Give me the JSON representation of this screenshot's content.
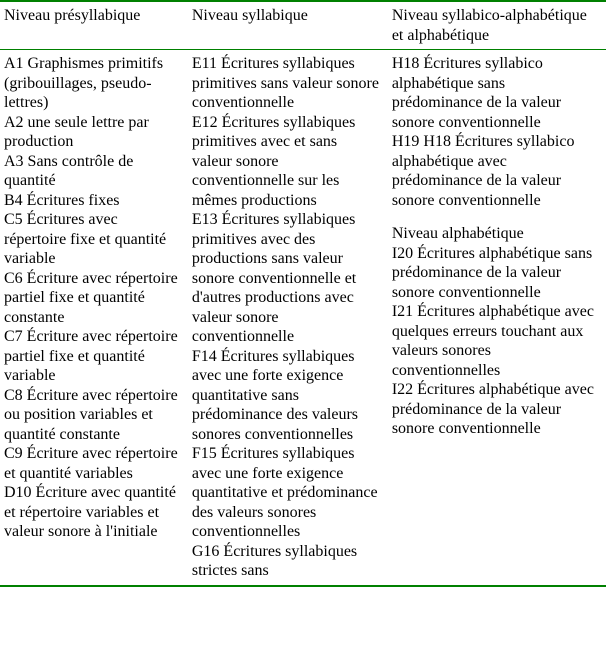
{
  "colors": {
    "border": "#008000",
    "text": "#000000",
    "background": "#ffffff"
  },
  "typography": {
    "family": "Times New Roman",
    "size_pt": 12
  },
  "table": {
    "headers": {
      "col1": "Niveau présyllabique",
      "col2": "Niveau syllabique",
      "col3a": "Niveau syllabico-alphabétique",
      "col3b": "et alphabétique"
    },
    "col1": {
      "a1": "A1 Graphismes primitifs (gribouillages, pseudo-lettres)",
      "a2": "A2 une seule lettre par production",
      "a3": "A3 Sans contrôle de quantité",
      "b4": "B4 Écritures fixes",
      "c5": "C5 Écritures avec répertoire fixe et quantité variable",
      "c6": "C6 Écriture avec répertoire partiel fixe et quantité constante",
      "c7": "C7 Écriture avec répertoire partiel fixe et quantité variable",
      "c8": "C8 Écriture avec répertoire ou position variables et quantité constante",
      "c9": "C9 Écriture avec répertoire et quantité variables",
      "d10": "D10 Écriture avec quantité et répertoire variables et valeur sonore à l'initiale"
    },
    "col2": {
      "e11": "E11 Écritures syllabiques primitives sans valeur sonore conventionnelle",
      "e12": "E12 Écritures syllabiques primitives avec et sans valeur sonore conventionnelle sur les mêmes productions",
      "e13": "E13 Écritures syllabiques primitives avec des productions sans valeur sonore conventionnelle et d'autres productions avec valeur sonore conventionnelle",
      "f14": "F14 Écritures syllabiques avec une forte exigence quantitative sans prédominance des valeurs sonores conventionnelles",
      "f15": "F15 Écritures syllabiques avec une forte exigence quantitative et prédominance des valeurs sonores conventionnelles",
      "g16": "G16 Écritures syllabiques strictes sans"
    },
    "col3": {
      "h18": "H18 Écritures syllabico alphabétique sans prédominance de la valeur sonore conventionnelle",
      "h19": "H19 H18 Écritures syllabico alphabétique avec prédominance de la valeur sonore conventionnelle",
      "subhead": "Niveau alphabétique",
      "i20": "I20 Écritures alphabétique sans prédominance de la valeur sonore conventionnelle",
      "i21": "I21 Écritures alphabétique avec quelques erreurs touchant aux valeurs sonores conventionnelles",
      "i22": "I22 Écritures alphabétique avec prédominance de la valeur sonore conventionnelle"
    }
  }
}
